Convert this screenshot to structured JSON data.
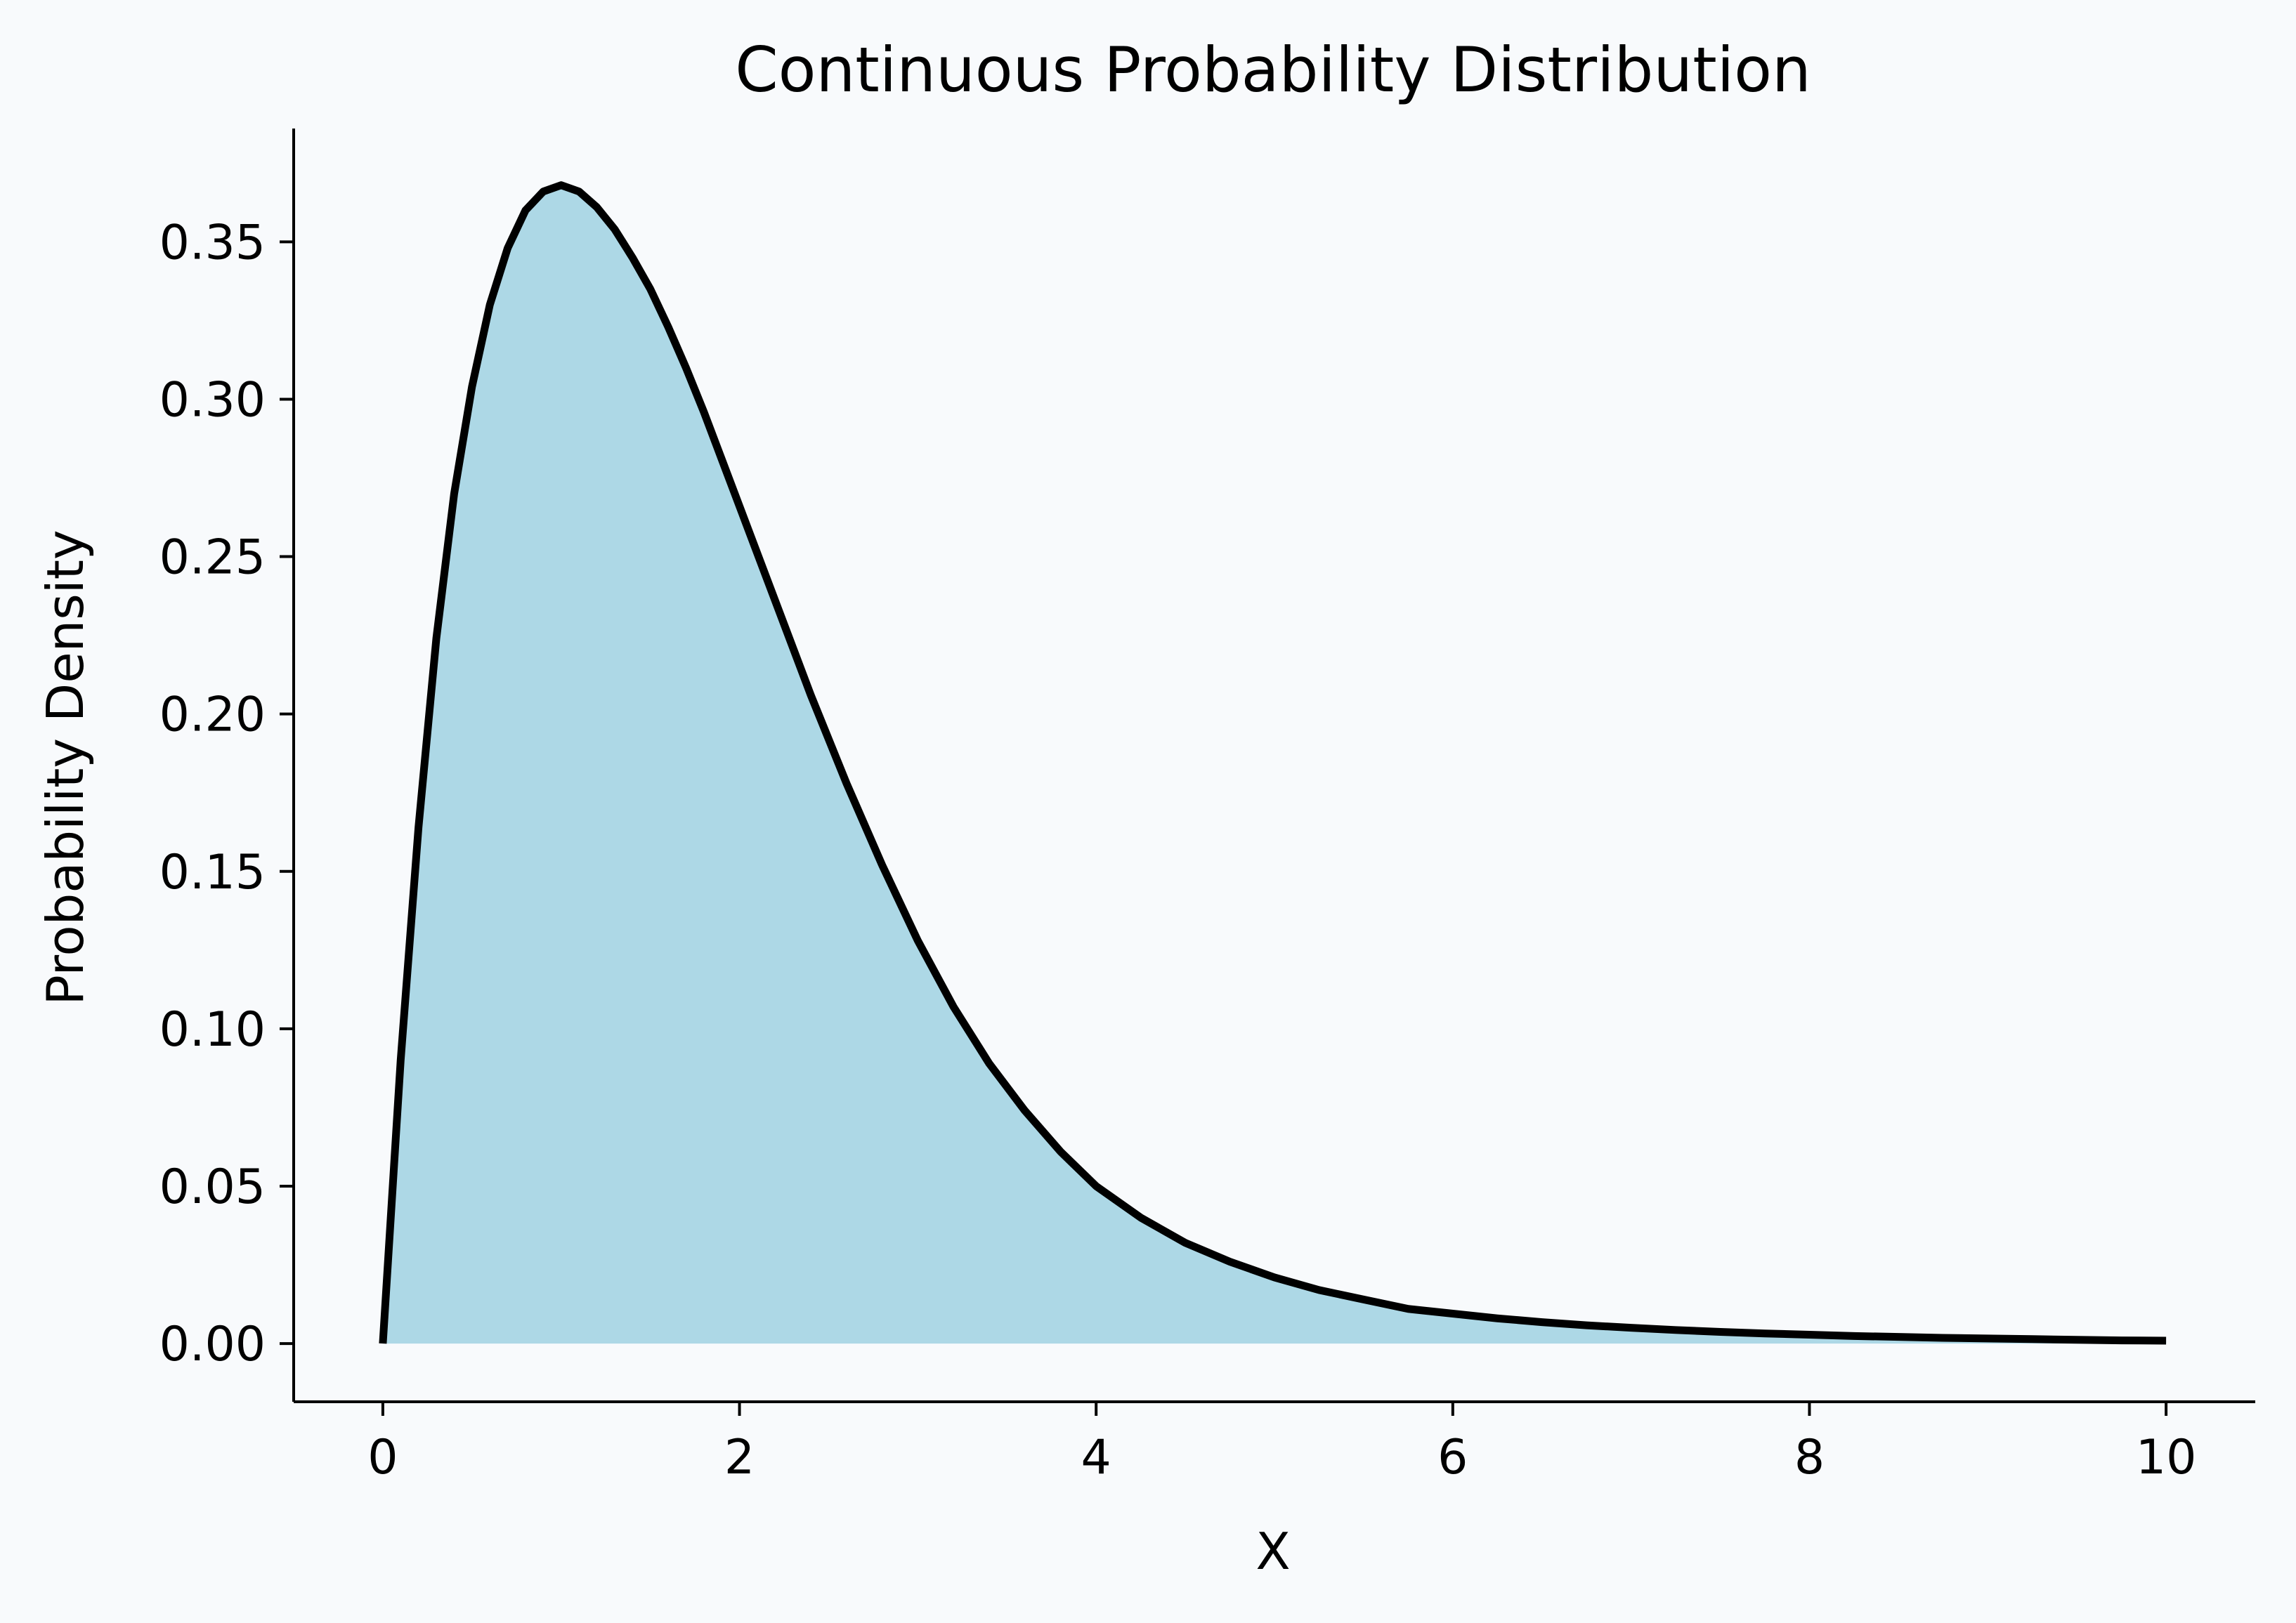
{
  "colors": {
    "background": "#f8fafc",
    "fill": "#add8e6",
    "line": "#000000",
    "axis": "#000000"
  },
  "chart_data": {
    "type": "area",
    "title": "Continuous Probability Distribution",
    "xlabel": "X",
    "ylabel": "Probability Density",
    "xlim": [
      -0.5,
      10.5
    ],
    "ylim": [
      -0.0185,
      0.386
    ],
    "xticks": [
      0,
      2,
      4,
      6,
      8,
      10
    ],
    "xtick_labels": [
      "0",
      "2",
      "4",
      "6",
      "8",
      "10"
    ],
    "yticks": [
      0.0,
      0.05,
      0.1,
      0.15,
      0.2,
      0.25,
      0.3,
      0.35
    ],
    "ytick_labels": [
      "0.00",
      "0.05",
      "0.10",
      "0.15",
      "0.20",
      "0.25",
      "0.30",
      "0.35"
    ],
    "grid": false,
    "legend": "none",
    "spines": "left-bottom",
    "series": [
      {
        "x": [
          0,
          0.1,
          0.2,
          0.3,
          0.4,
          0.5,
          0.6,
          0.7,
          0.8,
          0.9,
          1.0,
          1.1,
          1.2,
          1.3,
          1.4,
          1.5,
          1.6,
          1.7,
          1.8,
          1.9,
          2.0,
          2.2,
          2.4,
          2.6,
          2.8,
          3.0,
          3.2,
          3.4,
          3.6,
          3.8,
          4.0,
          4.25,
          4.5,
          4.75,
          5.0,
          5.25,
          5.5,
          5.75,
          6.0,
          6.25,
          6.5,
          6.75,
          7.0,
          7.25,
          7.5,
          7.75,
          8.0,
          8.25,
          8.5,
          8.75,
          9.0,
          9.25,
          9.5,
          9.75,
          10.0
        ],
        "y": [
          0.0,
          0.09,
          0.164,
          0.224,
          0.27,
          0.304,
          0.33,
          0.348,
          0.36,
          0.366,
          0.368,
          0.366,
          0.361,
          0.354,
          0.345,
          0.335,
          0.323,
          0.31,
          0.296,
          0.281,
          0.266,
          0.236,
          0.206,
          0.178,
          0.152,
          0.128,
          0.107,
          0.089,
          0.074,
          0.061,
          0.05,
          0.04,
          0.032,
          0.026,
          0.021,
          0.017,
          0.014,
          0.011,
          0.0095,
          0.008,
          0.0068,
          0.0058,
          0.005,
          0.0043,
          0.0037,
          0.0032,
          0.0028,
          0.0024,
          0.0021,
          0.0018,
          0.0016,
          0.0014,
          0.0012,
          0.001,
          0.0009
        ]
      }
    ]
  }
}
